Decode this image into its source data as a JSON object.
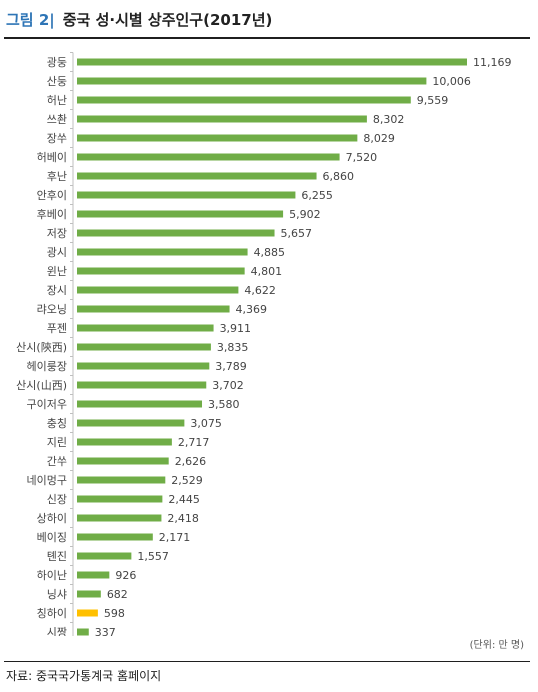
{
  "header": {
    "figure_number": "그림 2|",
    "title": "중국 성·시별 상주인구(2017년)"
  },
  "unit_note": "(단위: 만 명)",
  "source": "자료: 중국국가통계국 홈페이지",
  "chart_data": {
    "type": "bar",
    "orientation": "horizontal",
    "title": "중국 성·시별 상주인구(2017년)",
    "unit": "만 명",
    "grid": false,
    "legend": "none",
    "xlim": [
      0,
      11169
    ],
    "bar_color": "#70ad47",
    "highlight_color": "#ffc000",
    "highlight_index": 29,
    "categories": [
      "광둥",
      "산둥",
      "허난",
      "쓰촨",
      "장쑤",
      "허베이",
      "후난",
      "안후이",
      "후베이",
      "저장",
      "광시",
      "윈난",
      "장시",
      "랴오닝",
      "푸젠",
      "산시(陝西)",
      "헤이룽장",
      "산시(山西)",
      "구이저우",
      "충칭",
      "지린",
      "간쑤",
      "네이멍구",
      "신장",
      "상하이",
      "베이징",
      "톈진",
      "하이난",
      "닝샤",
      "칭하이",
      "시짱"
    ],
    "values": [
      11169,
      10006,
      9559,
      8302,
      8029,
      7520,
      6860,
      6255,
      5902,
      5657,
      4885,
      4801,
      4622,
      4369,
      3911,
      3835,
      3789,
      3702,
      3580,
      3075,
      2717,
      2626,
      2529,
      2445,
      2418,
      2171,
      1557,
      926,
      682,
      598,
      337
    ],
    "value_labels": [
      "11,169",
      "10,006",
      "9,559",
      "8,302",
      "8,029",
      "7,520",
      "6,860",
      "6,255",
      "5,902",
      "5,657",
      "4,885",
      "4,801",
      "4,622",
      "4,369",
      "3,911",
      "3,835",
      "3,789",
      "3,702",
      "3,580",
      "3,075",
      "2,717",
      "2,626",
      "2,529",
      "2,445",
      "2,418",
      "2,171",
      "1,557",
      "926",
      "682",
      "598",
      "337"
    ]
  }
}
